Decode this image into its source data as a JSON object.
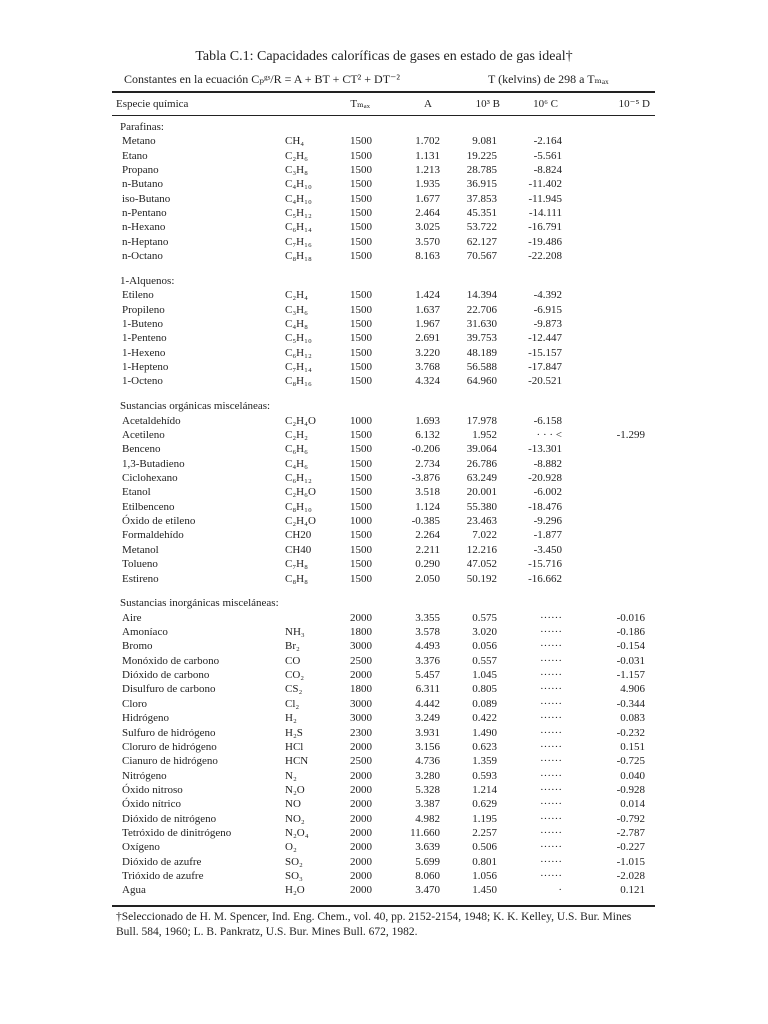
{
  "title": "Tabla C.1:  Capacidades caloríficas de gases en estado de gas ideal†",
  "equation": "Constantes en la ecuación Cₚᵍˢ/R = A + BT + CT² + DT⁻²",
  "range": "T (kelvins) de 298 a Tₘₐₓ",
  "headers": [
    "Especie química",
    "Tₘₐₓ",
    "A",
    "10³ B",
    "10⁶ C",
    "10⁻⁵ D"
  ],
  "sections": [
    {
      "name": "Parafinas:",
      "rows": [
        {
          "species": "Metano",
          "formula": "CH₄",
          "tmax": "1500",
          "A": "1.702",
          "B": "9.081",
          "C": "-2.164"
        },
        {
          "species": "Etano",
          "formula": "C₂H₆",
          "tmax": "1500",
          "A": "1.131",
          "B": "19.225",
          "C": "-5.561"
        },
        {
          "species": "Propano",
          "formula": "C₃H₈",
          "tmax": "1500",
          "A": "1.213",
          "B": "28.785",
          "C": "-8.824"
        },
        {
          "species": "n-Butano",
          "formula": "C₄H₁₀",
          "tmax": "1500",
          "A": "1.935",
          "B": "36.915",
          "C": "-11.402"
        },
        {
          "species": "iso-Butano",
          "formula": "C₄H₁₀",
          "tmax": "1500",
          "A": "1.677",
          "B": "37.853",
          "C": "-11.945"
        },
        {
          "species": "n-Pentano",
          "formula": "C₅H₁₂",
          "tmax": "1500",
          "A": "2.464",
          "B": "45.351",
          "C": "-14.111"
        },
        {
          "species": "n-Hexano",
          "formula": "C₆H₁₄",
          "tmax": "1500",
          "A": "3.025",
          "B": "53.722",
          "C": "-16.791"
        },
        {
          "species": "n-Heptano",
          "formula": "C₇H₁₆",
          "tmax": "1500",
          "A": "3.570",
          "B": "62.127",
          "C": "-19.486"
        },
        {
          "species": "n-Octano",
          "formula": "C₈H₁₈",
          "tmax": "1500",
          "A": "8.163",
          "B": "70.567",
          "C": "-22.208"
        }
      ]
    },
    {
      "name": "1-Alquenos:",
      "rows": [
        {
          "species": "Etileno",
          "formula": "C₂H₄",
          "tmax": "1500",
          "A": "1.424",
          "B": "14.394",
          "C": "-4.392"
        },
        {
          "species": "Propileno",
          "formula": "C₃H₆",
          "tmax": "1500",
          "A": "1.637",
          "B": "22.706",
          "C": "-6.915"
        },
        {
          "species": "1-Buteno",
          "formula": "C₄H₈",
          "tmax": "1500",
          "A": "1.967",
          "B": "31.630",
          "C": "-9.873"
        },
        {
          "species": "1-Penteno",
          "formula": "C₅H₁₀",
          "tmax": "1500",
          "A": "2.691",
          "B": "39.753",
          "C": "-12.447"
        },
        {
          "species": "1-Hexeno",
          "formula": "C₆H₁₂",
          "tmax": "1500",
          "A": "3.220",
          "B": "48.189",
          "C": "-15.157"
        },
        {
          "species": "1-Hepteno",
          "formula": "C₇H₁₄",
          "tmax": "1500",
          "A": "3.768",
          "B": "56.588",
          "C": "-17.847"
        },
        {
          "species": "1-Octeno",
          "formula": "C₈H₁₆",
          "tmax": "1500",
          "A": "4.324",
          "B": "64.960",
          "C": "-20.521"
        }
      ]
    },
    {
      "name": "Sustancias orgánicas misceláneas:",
      "rows": [
        {
          "species": "Acetaldehído",
          "formula": "C₂H₄O",
          "tmax": "1000",
          "A": "1.693",
          "B": "17.978",
          "C": "-6.158"
        },
        {
          "species": "Acetileno",
          "formula": "C₂H₂",
          "tmax": "1500",
          "A": "6.132",
          "B": "1.952",
          "C": "· · · <",
          "D": "-1.299"
        },
        {
          "species": "Benceno",
          "formula": "C₆H₆",
          "tmax": "1500",
          "A": "-0.206",
          "B": "39.064",
          "C": "-13.301"
        },
        {
          "species": "1,3-Butadieno",
          "formula": "C₄H₆",
          "tmax": "1500",
          "A": "2.734",
          "B": "26.786",
          "C": "-8.882"
        },
        {
          "species": "Ciclohexano",
          "formula": "C₆H₁₂",
          "tmax": "1500",
          "A": "-3.876",
          "B": "63.249",
          "C": "-20.928"
        },
        {
          "species": "Etanol",
          "formula": "C₂H₆O",
          "tmax": "1500",
          "A": "3.518",
          "B": "20.001",
          "C": "-6.002"
        },
        {
          "species": "Etilbenceno",
          "formula": "C₈H₁₀",
          "tmax": "1500",
          "A": "1.124",
          "B": "55.380",
          "C": "-18.476"
        },
        {
          "species": "Óxido de etileno",
          "formula": "C₂H₄O",
          "tmax": "1000",
          "A": "-0.385",
          "B": "23.463",
          "C": "-9.296"
        },
        {
          "species": "Formaldehído",
          "formula": "CH20",
          "tmax": "1500",
          "A": "2.264",
          "B": "7.022",
          "C": "-1.877"
        },
        {
          "species": "Metanol",
          "formula": "CH40",
          "tmax": "1500",
          "A": "2.211",
          "B": "12.216",
          "C": "-3.450"
        },
        {
          "species": "Tolueno",
          "formula": "C₇H₈",
          "tmax": "1500",
          "A": "0.290",
          "B": "47.052",
          "C": "-15.716"
        },
        {
          "species": "Estireno",
          "formula": "C₈H₈",
          "tmax": "1500",
          "A": "2.050",
          "B": "50.192",
          "C": "-16.662"
        }
      ]
    },
    {
      "name": "Sustancias inorgánicas misceláneas:",
      "rows": [
        {
          "species": "Aire",
          "tmax": "2000",
          "A": "3.355",
          "B": "0.575",
          "C": "······",
          "D": "-0.016"
        },
        {
          "species": "Amoníaco",
          "formula": "NH₃",
          "tmax": "1800",
          "A": "3.578",
          "B": "3.020",
          "C": "······",
          "D": "-0.186"
        },
        {
          "species": "Bromo",
          "formula": "Br₂",
          "tmax": "3000",
          "A": "4.493",
          "B": "0.056",
          "C": "······",
          "D": "-0.154"
        },
        {
          "species": "Monóxido de carbono",
          "formula": "CO",
          "tmax": "2500",
          "A": "3.376",
          "B": "0.557",
          "C": "······",
          "D": "-0.031"
        },
        {
          "species": "Dióxido de carbono",
          "formula": "CO₂",
          "tmax": "2000",
          "A": "5.457",
          "B": "1.045",
          "C": "······",
          "D": "-1.157"
        },
        {
          "species": "Disulfuro de carbono",
          "formula": "CS₂",
          "tmax": "1800",
          "A": "6.311",
          "B": "0.805",
          "C": "······",
          "D": "4.906"
        },
        {
          "species": "Cloro",
          "formula": "Cl₂",
          "tmax": "3000",
          "A": "4.442",
          "B": "0.089",
          "C": "······",
          "D": "-0.344"
        },
        {
          "species": "Hidrógeno",
          "formula": "H₂",
          "tmax": "3000",
          "A": "3.249",
          "B": "0.422",
          "C": "······",
          "D": "0.083"
        },
        {
          "species": "Sulfuro de hidrógeno",
          "formula": "H₂S",
          "tmax": "2300",
          "A": "3.931",
          "B": "1.490",
          "C": "······",
          "D": "-0.232"
        },
        {
          "species": "Cloruro de hidrógeno",
          "formula": "HCl",
          "tmax": "2000",
          "A": "3.156",
          "B": "0.623",
          "C": "······",
          "D": "0.151"
        },
        {
          "species": "Cianuro de hidrógeno",
          "formula": "HCN",
          "tmax": "2500",
          "A": "4.736",
          "B": "1.359",
          "C": "······",
          "D": "-0.725"
        },
        {
          "species": "Nitrógeno",
          "formula": "N₂",
          "tmax": "2000",
          "A": "3.280",
          "B": "0.593",
          "C": "······",
          "D": "0.040"
        },
        {
          "species": "Óxido nitroso",
          "formula": "N₂O",
          "tmax": "2000",
          "A": "5.328",
          "B": "1.214",
          "C": "······",
          "D": "-0.928"
        },
        {
          "species": "Óxido nítrico",
          "formula": "NO",
          "tmax": "2000",
          "A": "3.387",
          "B": "0.629",
          "C": "······",
          "D": "0.014"
        },
        {
          "species": "Dióxido de nitrógeno",
          "formula": "NO₂",
          "tmax": "2000",
          "A": "4.982",
          "B": "1.195",
          "C": "······",
          "D": "-0.792"
        },
        {
          "species": "Tetróxido de dinitrógeno",
          "formula": "N₂O₄",
          "tmax": "2000",
          "A": "11.660",
          "B": "2.257",
          "C": "······",
          "D": "-2.787"
        },
        {
          "species": "Oxígeno",
          "formula": "O₂",
          "tmax": "2000",
          "A": "3.639",
          "B": "0.506",
          "C": "······",
          "D": "-0.227"
        },
        {
          "species": "Dióxido de azufre",
          "formula": "SO₂",
          "tmax": "2000",
          "A": "5.699",
          "B": "0.801",
          "C": "······",
          "D": "-1.015"
        },
        {
          "species": "Trióxido de azufre",
          "formula": "SO₃",
          "tmax": "2000",
          "A": "8.060",
          "B": "1.056",
          "C": "······",
          "D": "-2.028"
        },
        {
          "species": "Agua",
          "formula": "H₂O",
          "tmax": "2000",
          "A": "3.470",
          "B": "1.450",
          "C": "·",
          "D": "0.121"
        }
      ]
    }
  ],
  "footnote": "†Seleccionado de H. M. Spencer, Ind. Eng. Chem., vol. 40, pp. 2152-2154, 1948; K. K. Kelley, U.S. Bur. Mines Bull. 584, 1960; L. B. Pankratz, U.S. Bur. Mines Bull. 672, 1982."
}
